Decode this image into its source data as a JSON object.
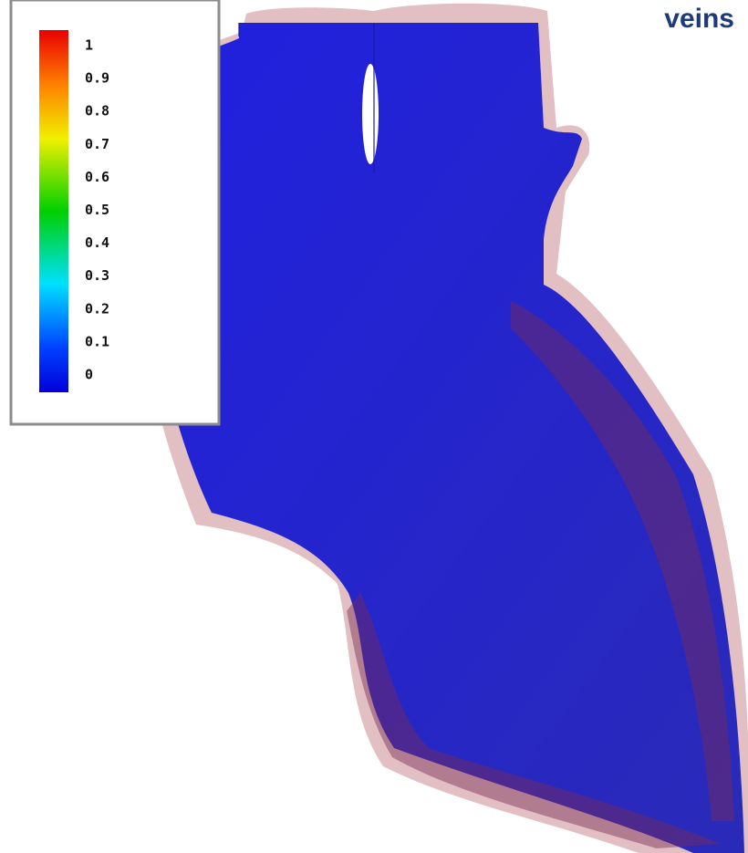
{
  "title": "veins",
  "colorbar": {
    "ticks": [
      0,
      0.1,
      0.2,
      0.3,
      0.4,
      0.5,
      0.6,
      0.7,
      0.8,
      0.9,
      1
    ]
  }
}
